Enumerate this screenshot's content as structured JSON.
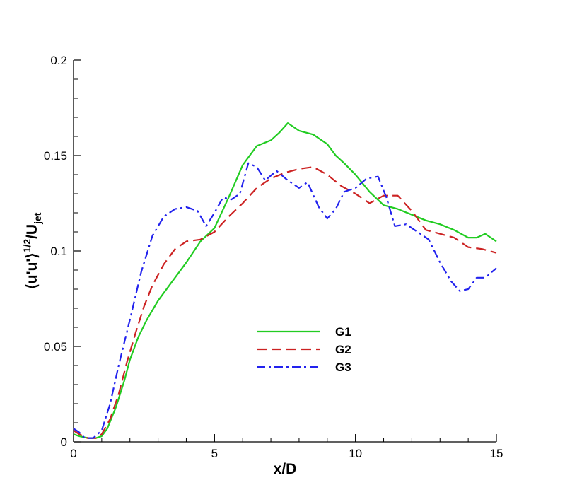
{
  "chart_data": {
    "type": "line",
    "title": "",
    "xlabel": "x/D",
    "ylabel": "⟨u'u'⟩^1/2/U_jet",
    "ylabel_parts": {
      "main": "⟨u'u'⟩",
      "sup": "1/2",
      "slash": "/U",
      "sub": "jet"
    },
    "xlim": [
      0,
      15
    ],
    "ylim": [
      0,
      0.2
    ],
    "x_ticks": [
      0,
      5,
      10,
      15
    ],
    "x_tick_labels": [
      "0",
      "5",
      "10",
      "15"
    ],
    "y_ticks": [
      0,
      0.05,
      0.1,
      0.15,
      0.2
    ],
    "y_tick_labels": [
      "0",
      "0.05",
      "0.1",
      "0.15",
      "0.2"
    ],
    "grid": false,
    "legend_position": "center",
    "series": [
      {
        "name": "G1",
        "color": "#22cc22",
        "dash": "solid",
        "x": [
          0,
          0.2,
          0.5,
          0.8,
          1.0,
          1.2,
          1.5,
          1.8,
          2.0,
          2.3,
          2.6,
          3.0,
          3.5,
          4.0,
          4.5,
          5.0,
          5.5,
          6.0,
          6.5,
          7.0,
          7.3,
          7.6,
          8.0,
          8.5,
          9.0,
          9.3,
          9.6,
          10.0,
          10.5,
          11.0,
          11.5,
          12.0,
          12.5,
          13.0,
          13.5,
          14.0,
          14.3,
          14.6,
          15.0
        ],
        "y": [
          0.004,
          0.003,
          0.002,
          0.002,
          0.003,
          0.007,
          0.018,
          0.032,
          0.043,
          0.055,
          0.064,
          0.074,
          0.084,
          0.094,
          0.105,
          0.112,
          0.128,
          0.145,
          0.155,
          0.158,
          0.162,
          0.167,
          0.163,
          0.161,
          0.156,
          0.15,
          0.146,
          0.14,
          0.131,
          0.124,
          0.122,
          0.119,
          0.116,
          0.114,
          0.111,
          0.107,
          0.107,
          0.109,
          0.105
        ]
      },
      {
        "name": "G2",
        "color": "#cc2222",
        "dash": "dashed",
        "x": [
          0,
          0.2,
          0.5,
          0.8,
          1.0,
          1.3,
          1.6,
          1.9,
          2.2,
          2.5,
          2.8,
          3.2,
          3.6,
          4.0,
          4.5,
          5.0,
          5.5,
          6.0,
          6.5,
          7.0,
          7.5,
          8.0,
          8.5,
          9.0,
          9.5,
          10.0,
          10.5,
          11.0,
          11.5,
          12.0,
          12.5,
          13.0,
          13.5,
          14.0,
          14.5,
          15.0
        ],
        "y": [
          0.006,
          0.004,
          0.002,
          0.002,
          0.004,
          0.012,
          0.025,
          0.042,
          0.057,
          0.071,
          0.082,
          0.093,
          0.101,
          0.105,
          0.106,
          0.11,
          0.118,
          0.125,
          0.133,
          0.138,
          0.141,
          0.143,
          0.144,
          0.14,
          0.134,
          0.13,
          0.125,
          0.129,
          0.129,
          0.121,
          0.111,
          0.109,
          0.107,
          0.102,
          0.101,
          0.099
        ]
      },
      {
        "name": "G3",
        "color": "#2222ee",
        "dash": "dashdot",
        "x": [
          0,
          0.2,
          0.4,
          0.7,
          1.0,
          1.3,
          1.6,
          2.0,
          2.4,
          2.8,
          3.2,
          3.6,
          4.0,
          4.4,
          4.7,
          5.0,
          5.3,
          5.6,
          5.9,
          6.2,
          6.5,
          6.8,
          7.2,
          7.6,
          8.0,
          8.3,
          8.7,
          9.0,
          9.3,
          9.6,
          10.0,
          10.4,
          10.8,
          11.1,
          11.4,
          11.8,
          12.2,
          12.6,
          13.0,
          13.4,
          13.7,
          14.0,
          14.3,
          14.6,
          15.0
        ],
        "y": [
          0.007,
          0.005,
          0.002,
          0.002,
          0.006,
          0.02,
          0.04,
          0.064,
          0.089,
          0.108,
          0.118,
          0.122,
          0.123,
          0.121,
          0.113,
          0.12,
          0.128,
          0.127,
          0.13,
          0.146,
          0.144,
          0.137,
          0.142,
          0.137,
          0.133,
          0.136,
          0.123,
          0.117,
          0.122,
          0.131,
          0.133,
          0.138,
          0.139,
          0.128,
          0.113,
          0.114,
          0.11,
          0.106,
          0.094,
          0.084,
          0.079,
          0.08,
          0.086,
          0.086,
          0.091
        ]
      }
    ]
  }
}
